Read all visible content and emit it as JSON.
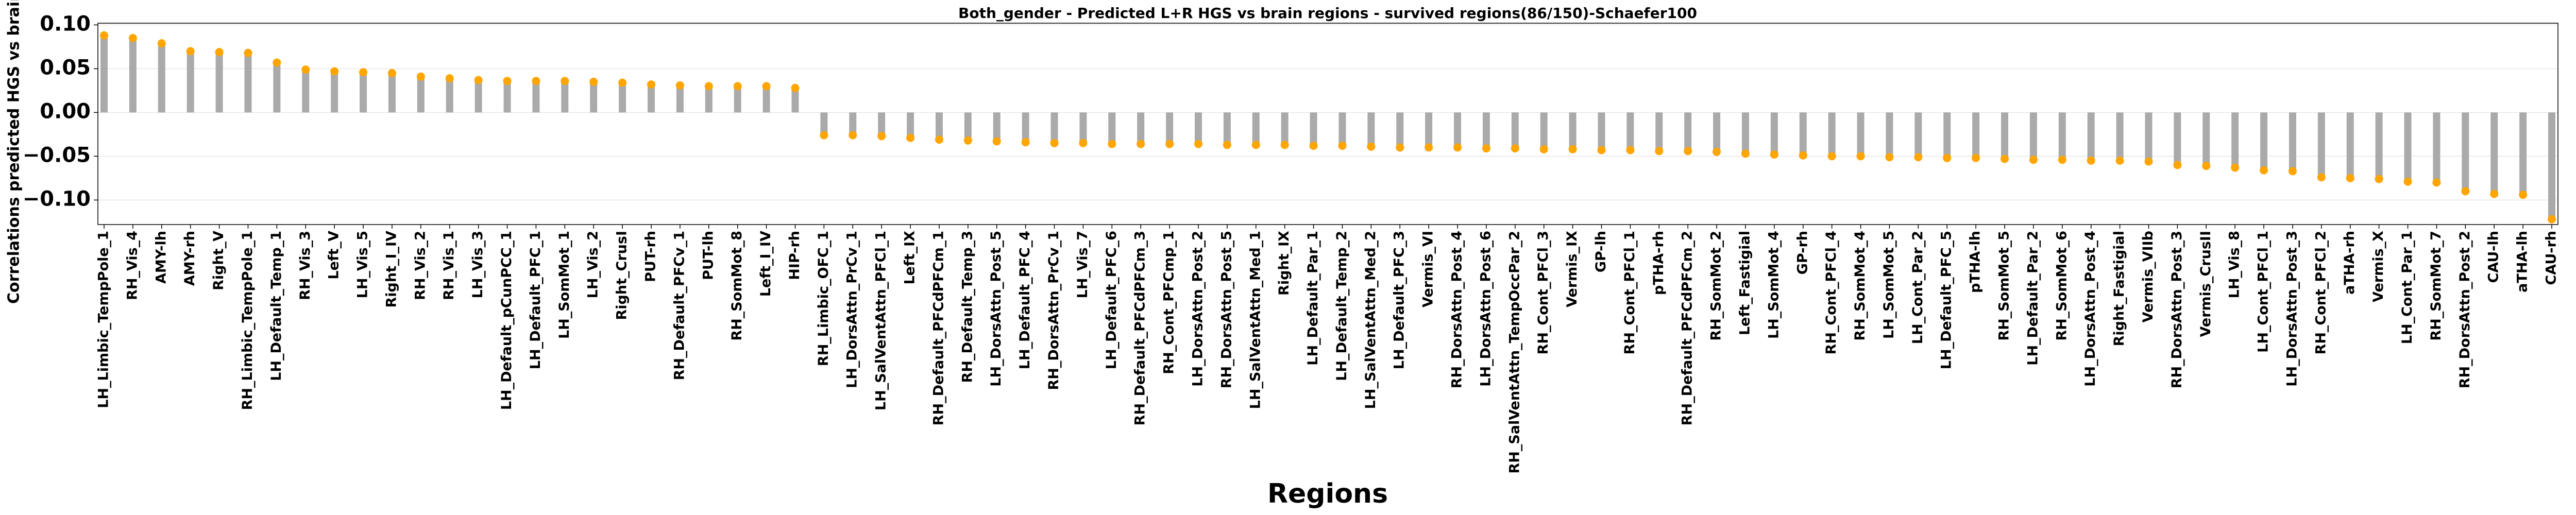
{
  "chart_data": {
    "type": "lollipop",
    "title": "Both_gender - Predicted L+R HGS vs brain regions - survived regions(86/150)-Schaefer100",
    "xlabel": "Regions",
    "ylabel": "Correlations predicted HGS vs brain regions",
    "categories": [
      "LH_Limbic_TempPole_1",
      "RH_Vis_4",
      "AMY-lh",
      "AMY-rh",
      "Right_V",
      "RH_Limbic_TempPole_1",
      "LH_Default_Temp_1",
      "RH_Vis_3",
      "Left_V",
      "LH_Vis_5",
      "Right_I_IV",
      "RH_Vis_2",
      "RH_Vis_1",
      "LH_Vis_3",
      "LH_Default_pCunPCC_1",
      "LH_Default_PFC_1",
      "LH_SomMot_1",
      "LH_Vis_2",
      "Right_CrusI",
      "PUT-rh",
      "RH_Default_PFCv_1",
      "PUT-lh",
      "RH_SomMot_8",
      "Left_I_IV",
      "HIP-rh",
      "RH_Limbic_OFC_1",
      "LH_DorsAttn_PrCv_1",
      "LH_SalVentAttn_PFCl_1",
      "Left_IX",
      "RH_Default_PFCdPFCm_1",
      "RH_Default_Temp_3",
      "LH_DorsAttn_Post_5",
      "LH_Default_PFC_4",
      "RH_DorsAttn_PrCv_1",
      "LH_Vis_7",
      "LH_Default_PFC_6",
      "RH_Default_PFCdPFCm_3",
      "RH_Cont_PFCmp_1",
      "LH_DorsAttn_Post_2",
      "RH_DorsAttn_Post_5",
      "LH_SalVentAttn_Med_1",
      "Right_IX",
      "LH_Default_Par_1",
      "LH_Default_Temp_2",
      "LH_SalVentAttn_Med_2",
      "LH_Default_PFC_3",
      "Vermis_VI",
      "RH_DorsAttn_Post_4",
      "LH_DorsAttn_Post_6",
      "RH_SalVentAttn_TempOccPar_2",
      "RH_Cont_PFCl_3",
      "Vermis_IX",
      "GP-lh",
      "RH_Cont_PFCl_1",
      "pTHA-rh",
      "RH_Default_PFCdPFCm_2",
      "RH_SomMot_2",
      "Left_Fastigial",
      "LH_SomMot_4",
      "GP-rh",
      "RH_Cont_PFCl_4",
      "RH_SomMot_4",
      "LH_SomMot_5",
      "LH_Cont_Par_2",
      "LH_Default_PFC_5",
      "pTHA-lh",
      "RH_SomMot_5",
      "LH_Default_Par_2",
      "RH_SomMot_6",
      "LH_DorsAttn_Post_4",
      "Right_Fastigial",
      "Vermis_VIIb",
      "RH_DorsAttn_Post_3",
      "Vermis_CrusII",
      "LH_Vis_8",
      "LH_Cont_PFCl_1",
      "LH_DorsAttn_Post_3",
      "RH_Cont_PFCl_2",
      "aTHA-rh",
      "Vermis_X",
      "LH_Cont_Par_1",
      "RH_SomMot_7",
      "RH_DorsAttn_Post_2",
      "CAU-lh",
      "aTHA-lh",
      "CAU-rh"
    ],
    "values": [
      0.088,
      0.085,
      0.079,
      0.07,
      0.069,
      0.068,
      0.057,
      0.049,
      0.047,
      0.046,
      0.045,
      0.041,
      0.039,
      0.037,
      0.036,
      0.036,
      0.036,
      0.035,
      0.034,
      0.032,
      0.031,
      0.03,
      0.03,
      0.03,
      0.028,
      -0.026,
      -0.026,
      -0.027,
      -0.029,
      -0.031,
      -0.032,
      -0.033,
      -0.034,
      -0.035,
      -0.035,
      -0.036,
      -0.036,
      -0.036,
      -0.036,
      -0.037,
      -0.037,
      -0.037,
      -0.038,
      -0.038,
      -0.039,
      -0.04,
      -0.04,
      -0.04,
      -0.041,
      -0.041,
      -0.042,
      -0.042,
      -0.043,
      -0.043,
      -0.044,
      -0.044,
      -0.045,
      -0.047,
      -0.048,
      -0.049,
      -0.05,
      -0.05,
      -0.051,
      -0.051,
      -0.052,
      -0.052,
      -0.053,
      -0.054,
      -0.054,
      -0.055,
      -0.055,
      -0.056,
      -0.06,
      -0.061,
      -0.063,
      -0.066,
      -0.067,
      -0.074,
      -0.075,
      -0.076,
      -0.079,
      -0.08,
      -0.09,
      -0.093,
      -0.094,
      -0.122
    ],
    "color": "#aaaaaa",
    "marker_color": "#ffa500",
    "ylim": [
      -0.128,
      0.102
    ],
    "yticks": [
      {
        "value": -0.1,
        "label": "−0.10"
      },
      {
        "value": -0.05,
        "label": "−0.05"
      },
      {
        "value": 0,
        "label": "0.00"
      },
      {
        "value": 0.05,
        "label": "0.05"
      },
      {
        "value": 0.1,
        "label": "0.10"
      }
    ],
    "grid": true
  }
}
